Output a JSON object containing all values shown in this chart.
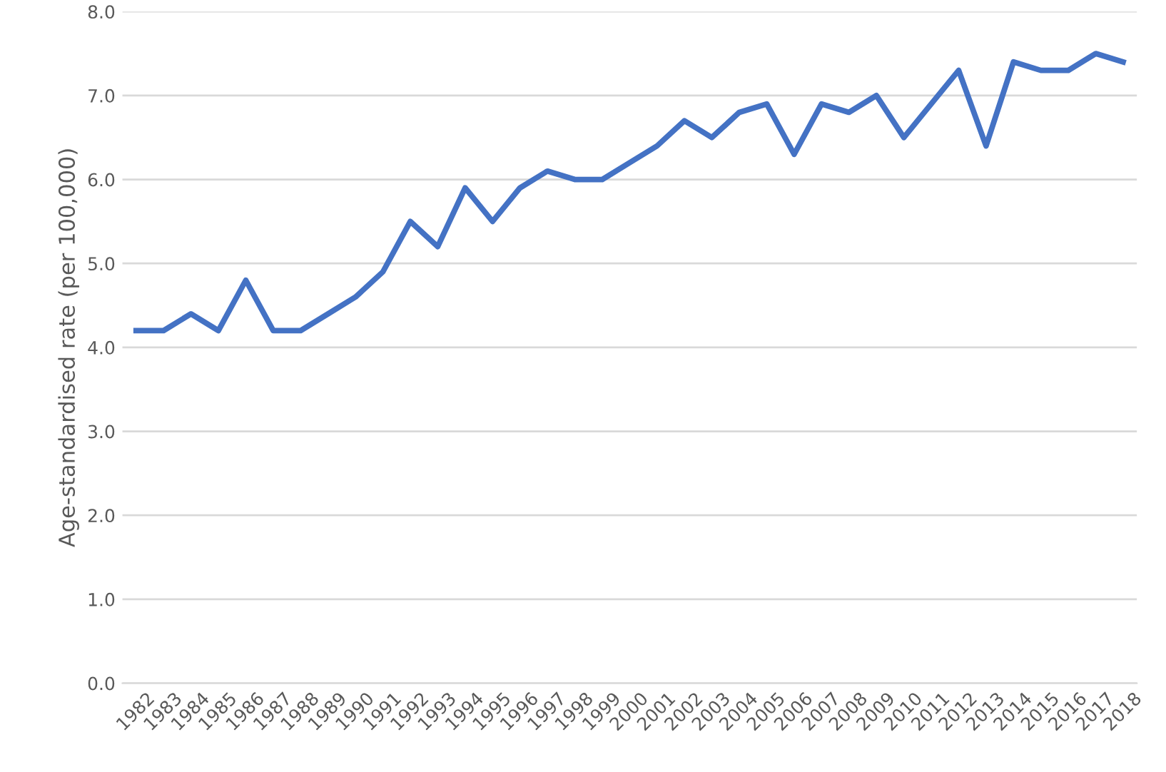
{
  "chart_data": {
    "type": "line",
    "ylabel": "Age-standardised rate (per 100,000)",
    "categories": [
      "1982",
      "1983",
      "1984",
      "1985",
      "1986",
      "1987",
      "1988",
      "1989",
      "1990",
      "1991",
      "1992",
      "1993",
      "1994",
      "1995",
      "1996",
      "1997",
      "1998",
      "1999",
      "2000",
      "2001",
      "2002",
      "2003",
      "2004",
      "2005",
      "2006",
      "2007",
      "2008",
      "2009",
      "2010",
      "2011",
      "2012",
      "2013",
      "2014",
      "2015",
      "2016",
      "2017",
      "2018"
    ],
    "series": [
      {
        "color": "#4472c4",
        "values": [
          4.2,
          4.2,
          4.4,
          4.2,
          4.8,
          4.2,
          4.2,
          4.4,
          4.6,
          4.9,
          5.5,
          5.2,
          5.9,
          5.5,
          5.9,
          6.1,
          6.0,
          6.0,
          6.2,
          6.4,
          6.7,
          6.5,
          6.8,
          6.9,
          6.3,
          6.9,
          6.8,
          7.0,
          6.5,
          6.9,
          7.3,
          6.4,
          7.4,
          7.3,
          7.3,
          7.5,
          7.4
        ]
      }
    ],
    "ylim": [
      0,
      8
    ],
    "yticks": [
      {
        "value": 0,
        "label": "0.0"
      },
      {
        "value": 1,
        "label": "1.0"
      },
      {
        "value": 2,
        "label": "2.0"
      },
      {
        "value": 3,
        "label": "3.0"
      },
      {
        "value": 4,
        "label": "4.0"
      },
      {
        "value": 5,
        "label": "5.0"
      },
      {
        "value": 6,
        "label": "6.0"
      },
      {
        "value": 7,
        "label": "7.0"
      },
      {
        "value": 8,
        "label": "8.0"
      }
    ],
    "grid": "y",
    "marker": "none",
    "line_style": "solid",
    "legend": false
  }
}
